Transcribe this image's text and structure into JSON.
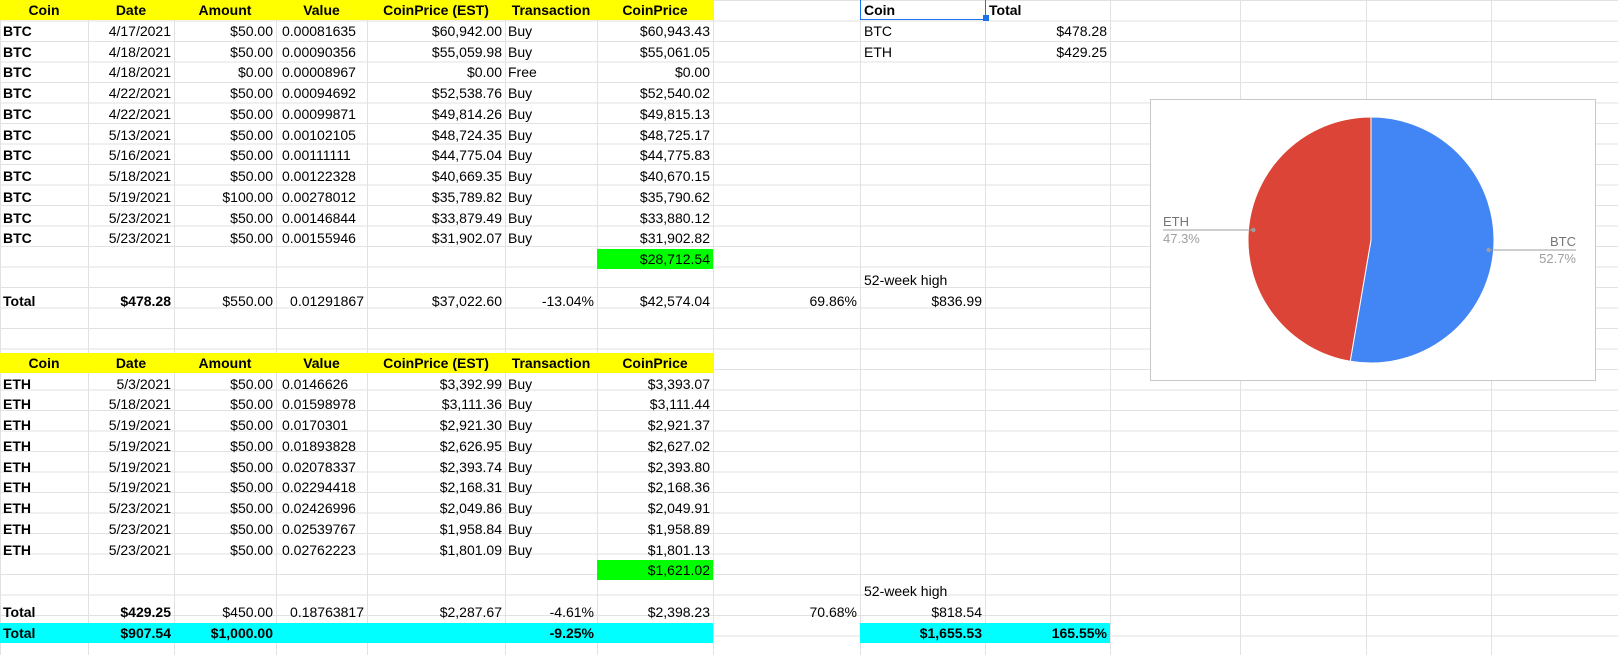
{
  "table_header": [
    "Coin",
    "Date",
    "Amount",
    "Value",
    "CoinPrice (EST)",
    "Transaction",
    "CoinPrice"
  ],
  "btc": {
    "rows": [
      [
        "BTC",
        "4/17/2021",
        "$50.00",
        "0.00081635",
        "$60,942.00",
        "Buy",
        "$60,943.43"
      ],
      [
        "BTC",
        "4/18/2021",
        "$50.00",
        "0.00090356",
        "$55,059.98",
        "Buy",
        "$55,061.05"
      ],
      [
        "BTC",
        "4/18/2021",
        "$0.00",
        "0.00008967",
        "$0.00",
        "Free",
        "$0.00"
      ],
      [
        "BTC",
        "4/22/2021",
        "$50.00",
        "0.00094692",
        "$52,538.76",
        "Buy",
        "$52,540.02"
      ],
      [
        "BTC",
        "4/22/2021",
        "$50.00",
        "0.00099871",
        "$49,814.26",
        "Buy",
        "$49,815.13"
      ],
      [
        "BTC",
        "5/13/2021",
        "$50.00",
        "0.00102105",
        "$48,724.35",
        "Buy",
        "$48,725.17"
      ],
      [
        "BTC",
        "5/16/2021",
        "$50.00",
        "0.00111111",
        "$44,775.04",
        "Buy",
        "$44,775.83"
      ],
      [
        "BTC",
        "5/18/2021",
        "$50.00",
        "0.00122328",
        "$40,669.35",
        "Buy",
        "$40,670.15"
      ],
      [
        "BTC",
        "5/19/2021",
        "$100.00",
        "0.00278012",
        "$35,789.82",
        "Buy",
        "$35,790.62"
      ],
      [
        "BTC",
        "5/23/2021",
        "$50.00",
        "0.00146844",
        "$33,879.49",
        "Buy",
        "$33,880.12"
      ],
      [
        "BTC",
        "5/23/2021",
        "$50.00",
        "0.00155946",
        "$31,902.07",
        "Buy",
        "$31,902.82"
      ]
    ],
    "current_price": "$28,712.54",
    "high_label": "52-week high",
    "total": {
      "label": "Total",
      "value": "$478.28",
      "amount": "$550.00",
      "coins": "0.01291867",
      "avg_price_est": "$37,022.60",
      "change": "-13.04%",
      "avg_price": "$42,574.04",
      "pct": "69.86%",
      "high": "$836.99"
    }
  },
  "eth": {
    "rows": [
      [
        "ETH",
        "5/3/2021",
        "$50.00",
        "0.0146626",
        "$3,392.99",
        "Buy",
        "$3,393.07"
      ],
      [
        "ETH",
        "5/18/2021",
        "$50.00",
        "0.01598978",
        "$3,111.36",
        "Buy",
        "$3,111.44"
      ],
      [
        "ETH",
        "5/19/2021",
        "$50.00",
        "0.0170301",
        "$2,921.30",
        "Buy",
        "$2,921.37"
      ],
      [
        "ETH",
        "5/19/2021",
        "$50.00",
        "0.01893828",
        "$2,626.95",
        "Buy",
        "$2,627.02"
      ],
      [
        "ETH",
        "5/19/2021",
        "$50.00",
        "0.02078337",
        "$2,393.74",
        "Buy",
        "$2,393.80"
      ],
      [
        "ETH",
        "5/19/2021",
        "$50.00",
        "0.02294418",
        "$2,168.31",
        "Buy",
        "$2,168.36"
      ],
      [
        "ETH",
        "5/23/2021",
        "$50.00",
        "0.02426996",
        "$2,049.86",
        "Buy",
        "$2,049.91"
      ],
      [
        "ETH",
        "5/23/2021",
        "$50.00",
        "0.02539767",
        "$1,958.84",
        "Buy",
        "$1,958.89"
      ],
      [
        "ETH",
        "5/23/2021",
        "$50.00",
        "0.02762223",
        "$1,801.09",
        "Buy",
        "$1,801.13"
      ]
    ],
    "current_price": "$1,621.02",
    "high_label": "52-week high",
    "total": {
      "label": "Total",
      "value": "$429.25",
      "amount": "$450.00",
      "coins": "0.18763817",
      "avg_price_est": "$2,287.67",
      "change": "-4.61%",
      "avg_price": "$2,398.23",
      "pct": "70.68%",
      "high": "$818.54"
    }
  },
  "grand_total": {
    "label": "Total",
    "value": "$907.54",
    "amount": "$1,000.00",
    "change": "-9.25%",
    "high": "$1,655.53",
    "pct": "165.55%"
  },
  "summary": {
    "headers": [
      "Coin",
      "Total"
    ],
    "rows": [
      [
        "BTC",
        "$478.28"
      ],
      [
        "ETH",
        "$429.25"
      ]
    ]
  },
  "colors": {
    "header_fill": "#ffff00",
    "price_fill": "#00ff00",
    "grand_total_fill": "#00ffff",
    "btc": "#4285f4",
    "eth": "#db4437"
  },
  "chart_data": {
    "type": "pie",
    "slices": [
      {
        "name": "BTC",
        "value": 478.28,
        "percent": "52.7%",
        "color": "#4285f4"
      },
      {
        "name": "ETH",
        "value": 429.25,
        "percent": "47.3%",
        "color": "#db4437"
      }
    ]
  }
}
